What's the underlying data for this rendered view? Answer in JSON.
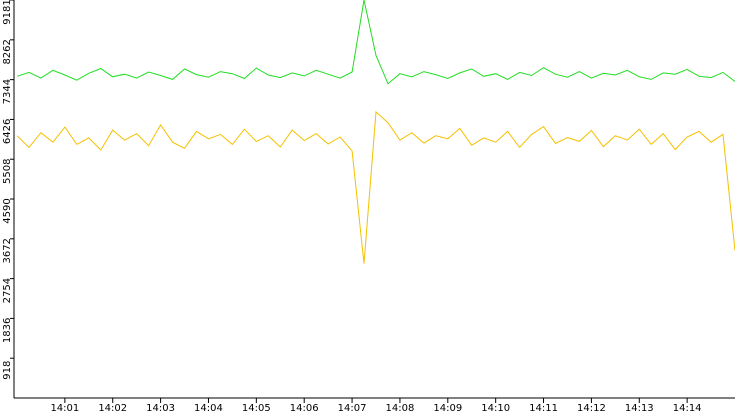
{
  "chart_data": {
    "type": "line",
    "categories": [
      null,
      null,
      null,
      null,
      "14:01",
      null,
      null,
      null,
      "14:02",
      null,
      null,
      null,
      "14:03",
      null,
      null,
      null,
      "14:04",
      null,
      null,
      null,
      "14:05",
      null,
      null,
      null,
      "14:06",
      null,
      null,
      null,
      "14:07",
      null,
      null,
      null,
      "14:08",
      null,
      null,
      null,
      "14:09",
      null,
      null,
      null,
      "14:10",
      null,
      null,
      null,
      "14:11",
      null,
      null,
      null,
      "14:12",
      null,
      null,
      null,
      "14:13",
      null,
      null,
      null,
      "14:14",
      null,
      null,
      null,
      null
    ],
    "series": [
      {
        "color": "#22dd22",
        "values": [
          7420,
          7510,
          7380,
          7560,
          7450,
          7330,
          7490,
          7600,
          7410,
          7470,
          7380,
          7520,
          7440,
          7350,
          7590,
          7460,
          7400,
          7530,
          7480,
          7370,
          7610,
          7450,
          7390,
          7500,
          7430,
          7560,
          7470,
          7380,
          7520,
          9181,
          7900,
          7250,
          7480,
          7410,
          7530,
          7460,
          7370,
          7500,
          7590,
          7420,
          7480,
          7350,
          7510,
          7440,
          7620,
          7470,
          7400,
          7530,
          7380,
          7490,
          7450,
          7560,
          7410,
          7350,
          7500,
          7470,
          7580,
          7420,
          7390,
          7510,
          7300
        ]
      },
      {
        "color": "#f5c000",
        "values": [
          6050,
          5780,
          6120,
          5900,
          6250,
          5850,
          6000,
          5720,
          6180,
          5950,
          6100,
          5820,
          6300,
          5900,
          5760,
          6150,
          5980,
          6080,
          5850,
          6200,
          5920,
          6050,
          5790,
          6180,
          5940,
          6100,
          5860,
          6020,
          5700,
          3100,
          6600,
          6350,
          5950,
          6120,
          5880,
          6050,
          5980,
          6220,
          5830,
          6000,
          5900,
          6150,
          5780,
          6080,
          6260,
          5870,
          6010,
          5920,
          6170,
          5800,
          6050,
          5950,
          6200,
          5850,
          6100,
          5730,
          6020,
          6150,
          5900,
          6080,
          3400
        ]
      }
    ],
    "ylim": [
      0,
      9181
    ],
    "yticks": [
      918,
      1836,
      2754,
      3672,
      4590,
      5508,
      6426,
      7344,
      8262,
      9181
    ],
    "grid": false
  }
}
